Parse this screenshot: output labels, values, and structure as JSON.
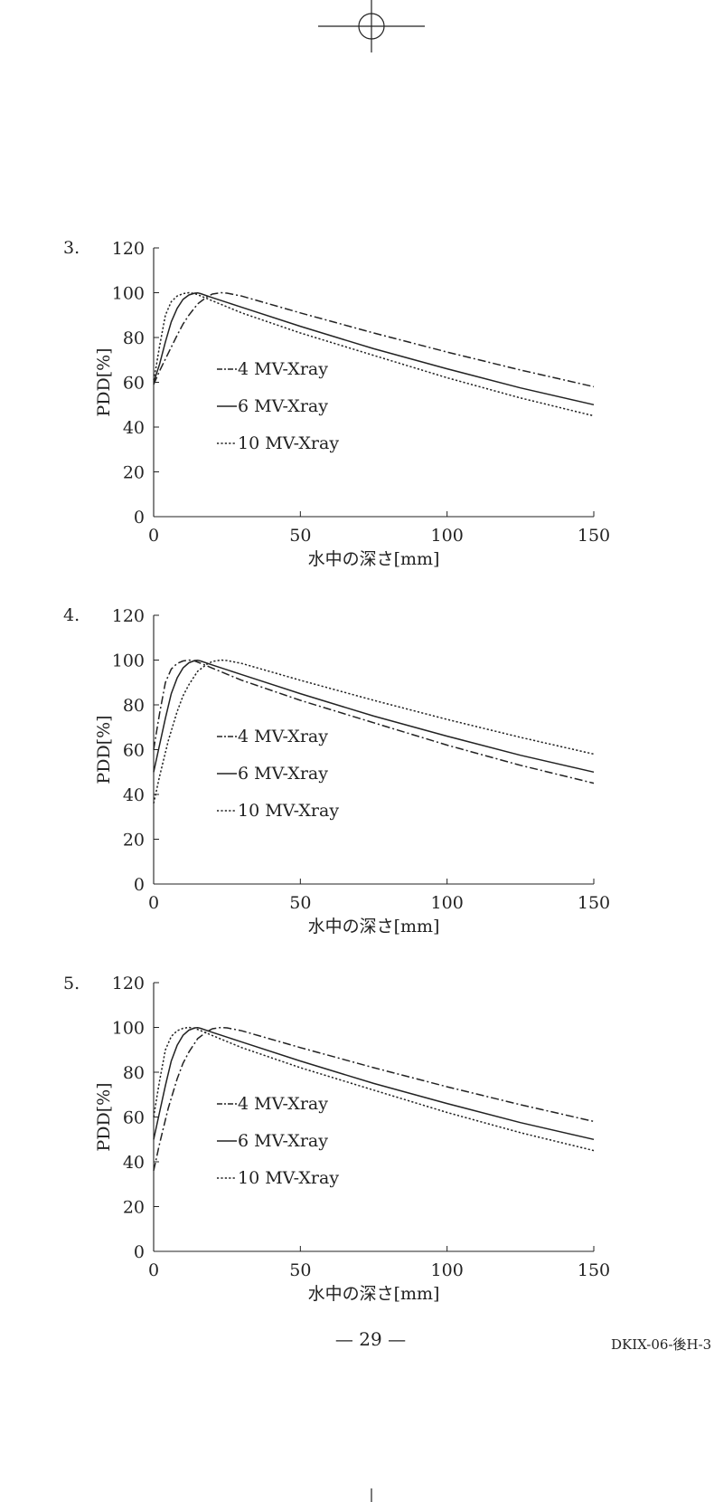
{
  "footer": {
    "page_number": "— 29 —",
    "doc_code": "DKIX-06-後H-3"
  },
  "colors": {
    "ink": "#222222",
    "background": "#ffffff"
  },
  "chart_data": [
    {
      "number": "3.",
      "type": "line",
      "xlabel": "水中の深さ[mm]",
      "ylabel": "PDD[%]",
      "xlim": [
        0,
        150
      ],
      "ylim": [
        0,
        120
      ],
      "xticks": [
        0,
        50,
        100,
        150
      ],
      "yticks": [
        0,
        20,
        40,
        60,
        80,
        100,
        120
      ],
      "legend_position": "lower-left",
      "series": [
        {
          "name": "4 MV-Xray",
          "style": "dashdot",
          "x": [
            0,
            2,
            5,
            8,
            10,
            12,
            15,
            18,
            20,
            23,
            25,
            30,
            50,
            75,
            100,
            125,
            150
          ],
          "y": [
            59,
            65,
            73,
            81,
            86,
            90,
            95,
            98,
            99.4,
            100,
            99.8,
            98.5,
            91,
            82,
            73.5,
            65.5,
            58
          ]
        },
        {
          "name": "6 MV-Xray",
          "style": "solid",
          "x": [
            0,
            2,
            4,
            6,
            8,
            10,
            12,
            14,
            15,
            16,
            20,
            30,
            50,
            75,
            100,
            125,
            150
          ],
          "y": [
            60,
            68,
            78,
            87,
            93,
            97,
            99,
            99.8,
            99.9,
            99.6,
            97.8,
            93.5,
            85,
            75,
            66,
            57.5,
            50
          ]
        },
        {
          "name": "10 MV-Xray",
          "style": "dotted",
          "x": [
            0,
            1,
            2,
            4,
            6,
            8,
            10,
            12,
            14,
            16,
            20,
            30,
            50,
            75,
            100,
            125,
            150
          ],
          "y": [
            61,
            68,
            76,
            90,
            96,
            98.5,
            99.6,
            100,
            99.6,
            98.6,
            96.4,
            91,
            82,
            72,
            62,
            53,
            45
          ]
        }
      ]
    },
    {
      "number": "4.",
      "type": "line",
      "xlabel": "水中の深さ[mm]",
      "ylabel": "PDD[%]",
      "xlim": [
        0,
        150
      ],
      "ylim": [
        0,
        120
      ],
      "xticks": [
        0,
        50,
        100,
        150
      ],
      "yticks": [
        0,
        20,
        40,
        60,
        80,
        100,
        120
      ],
      "legend_position": "lower-left",
      "series": [
        {
          "name": "4 MV-Xray",
          "style": "dashdot",
          "x": [
            0,
            1,
            2,
            4,
            6,
            8,
            10,
            12,
            14,
            16,
            20,
            30,
            50,
            75,
            100,
            125,
            150
          ],
          "y": [
            60,
            68,
            76,
            90,
            96,
            98.5,
            99.6,
            100,
            99.6,
            98.6,
            96.4,
            91,
            82,
            72,
            62,
            53,
            45
          ]
        },
        {
          "name": "6 MV-Xray",
          "style": "solid",
          "x": [
            0,
            2,
            4,
            6,
            8,
            10,
            12,
            14,
            15,
            16,
            20,
            30,
            50,
            75,
            100,
            125,
            150
          ],
          "y": [
            50,
            62,
            74,
            85,
            92,
            96.5,
            98.8,
            99.8,
            99.9,
            99.6,
            97.8,
            93.5,
            85,
            75,
            66,
            57.5,
            50
          ]
        },
        {
          "name": "10 MV-Xray",
          "style": "dotted",
          "x": [
            0,
            2,
            5,
            8,
            10,
            12,
            15,
            18,
            20,
            23,
            25,
            30,
            50,
            75,
            100,
            125,
            150
          ],
          "y": [
            36,
            48,
            64,
            77,
            84,
            89,
            95,
            98,
            99.4,
            100,
            99.8,
            98.5,
            91,
            82,
            73.5,
            65.5,
            58
          ]
        }
      ]
    },
    {
      "number": "5.",
      "type": "line",
      "xlabel": "水中の深さ[mm]",
      "ylabel": "PDD[%]",
      "xlim": [
        0,
        150
      ],
      "ylim": [
        0,
        120
      ],
      "xticks": [
        0,
        50,
        100,
        150
      ],
      "yticks": [
        0,
        20,
        40,
        60,
        80,
        100,
        120
      ],
      "legend_position": "lower-left",
      "series": [
        {
          "name": "4 MV-Xray",
          "style": "dashdot",
          "x": [
            0,
            2,
            5,
            8,
            10,
            12,
            15,
            18,
            20,
            23,
            25,
            30,
            50,
            75,
            100,
            125,
            150
          ],
          "y": [
            36,
            48,
            64,
            77,
            84,
            89,
            95,
            98,
            99.4,
            100,
            99.8,
            98.5,
            91,
            82,
            73.5,
            65.5,
            58
          ]
        },
        {
          "name": "6 MV-Xray",
          "style": "solid",
          "x": [
            0,
            2,
            4,
            6,
            8,
            10,
            12,
            14,
            15,
            16,
            20,
            30,
            50,
            75,
            100,
            125,
            150
          ],
          "y": [
            50,
            62,
            74,
            85,
            92,
            96.5,
            98.8,
            99.8,
            99.9,
            99.6,
            97.8,
            93.5,
            85,
            75,
            66,
            57.5,
            50
          ]
        },
        {
          "name": "10 MV-Xray",
          "style": "dotted",
          "x": [
            0,
            1,
            2,
            4,
            6,
            8,
            10,
            12,
            14,
            16,
            20,
            30,
            50,
            75,
            100,
            125,
            150
          ],
          "y": [
            60,
            68,
            76,
            90,
            96,
            98.5,
            99.6,
            100,
            99.6,
            98.6,
            96.4,
            91,
            82,
            72,
            62,
            53,
            45
          ]
        }
      ]
    }
  ]
}
